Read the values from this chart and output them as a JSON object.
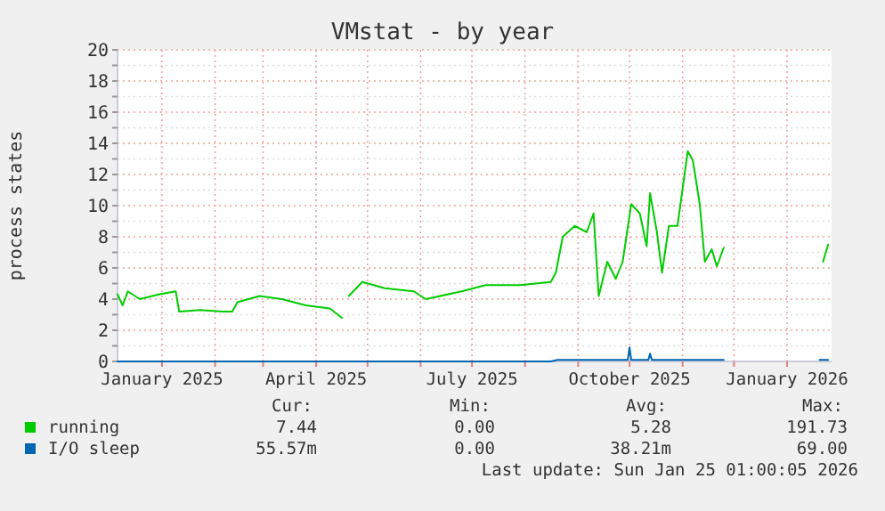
{
  "chart_data": {
    "type": "line",
    "title": "VMstat - by year",
    "ylabel": "process states",
    "xlim": [
      "2024-12-06",
      "2026-01-27"
    ],
    "xticks": [
      {
        "value": "2025-01-01",
        "label": "January 2025"
      },
      {
        "value": "2025-02-01",
        "label": null
      },
      {
        "value": "2025-03-01",
        "label": null
      },
      {
        "value": "2025-04-01",
        "label": "April 2025"
      },
      {
        "value": "2025-05-01",
        "label": null
      },
      {
        "value": "2025-06-01",
        "label": null
      },
      {
        "value": "2025-07-01",
        "label": "July 2025"
      },
      {
        "value": "2025-08-01",
        "label": null
      },
      {
        "value": "2025-09-01",
        "label": null
      },
      {
        "value": "2025-10-01",
        "label": "October 2025"
      },
      {
        "value": "2025-11-01",
        "label": null
      },
      {
        "value": "2025-12-01",
        "label": null
      },
      {
        "value": "2026-01-01",
        "label": "January 2026"
      }
    ],
    "ylim": [
      0,
      20
    ],
    "yticks": [
      0,
      {
        "value": 1,
        "label": null
      },
      2,
      {
        "value": 3,
        "label": null
      },
      4,
      {
        "value": 5,
        "label": null
      },
      6,
      {
        "value": 7,
        "label": null
      },
      8,
      {
        "value": 9,
        "label": null
      },
      10,
      {
        "value": 11,
        "label": null
      },
      12,
      {
        "value": 13,
        "label": null
      },
      14,
      {
        "value": 15,
        "label": null
      },
      16,
      {
        "value": 17,
        "label": null
      },
      18,
      {
        "value": 19,
        "label": null
      },
      20
    ],
    "grid": true,
    "legend": "bottom",
    "line_style": "solid",
    "marker": "none",
    "series": [
      {
        "name": "running",
        "color": "#00cc00",
        "x": [
          "2024-12-06",
          "2024-12-09",
          "2024-12-12",
          "2024-12-19",
          "2024-12-30",
          "2025-01-09",
          "2025-01-11",
          "2025-01-23",
          "2025-02-06",
          "2025-02-11",
          "2025-02-14",
          "2025-02-27",
          "2025-03-12",
          "2025-03-26",
          "2025-04-09",
          "2025-04-16"
        ],
        "values": [
          4.3,
          3.6,
          4.5,
          4.0,
          4.3,
          4.5,
          3.2,
          3.3,
          3.2,
          3.2,
          3.8,
          4.2,
          4.0,
          3.6,
          3.4,
          2.8
        ]
      },
      {
        "color": "#00cc00",
        "x": [
          "2025-04-20",
          "2025-04-28",
          "2025-05-11",
          "2025-05-28",
          "2025-06-04",
          "2025-06-25",
          "2025-07-09",
          "2025-07-29",
          "2025-08-16",
          "2025-08-19",
          "2025-08-23",
          "2025-08-30",
          "2025-09-06",
          "2025-09-10",
          "2025-09-13",
          "2025-09-18",
          "2025-09-23",
          "2025-09-27",
          "2025-10-02",
          "2025-10-07",
          "2025-10-11",
          "2025-10-13",
          "2025-10-17",
          "2025-10-20",
          "2025-10-24",
          "2025-10-29",
          "2025-11-04",
          "2025-11-07",
          "2025-11-11",
          "2025-11-14",
          "2025-11-18",
          "2025-11-21",
          "2025-11-25"
        ],
        "values": [
          4.2,
          5.1,
          4.7,
          4.5,
          4.0,
          4.5,
          4.9,
          4.9,
          5.1,
          5.7,
          8.0,
          8.7,
          8.3,
          9.5,
          4.2,
          6.4,
          5.3,
          6.4,
          10.1,
          9.5,
          7.4,
          10.8,
          8.3,
          5.7,
          8.7,
          8.7,
          13.5,
          12.9,
          10.1,
          6.4,
          7.2,
          6.1,
          7.3
        ]
      },
      {
        "color": "#00cc00",
        "x": [
          "2026-01-22",
          "2026-01-25"
        ],
        "values": [
          6.4,
          7.5
        ]
      },
      {
        "name": "I/O sleep",
        "color": "#0066b3",
        "x": [
          "2024-12-06",
          "2025-08-16",
          "2025-08-20",
          "2025-09-30",
          "2025-10-01",
          "2025-10-02",
          "2025-10-12",
          "2025-10-13",
          "2025-10-14",
          "2025-11-25"
        ],
        "values": [
          0,
          0,
          0.1,
          0.1,
          0.9,
          0.1,
          0.1,
          0.5,
          0.1,
          0.1
        ]
      },
      {
        "color": "#0066b3",
        "x": [
          "2026-01-20",
          "2026-01-25"
        ],
        "values": [
          0.1,
          0.1
        ]
      }
    ],
    "annotations": [
      "Cur:",
      "Min:",
      "Avg:",
      "Max:",
      "7.44",
      "0.00",
      "5.28",
      "191.73",
      "55.57m",
      "0.00",
      "38.21m",
      "69.00",
      "Last update: Sun Jan 25 01:00:05 2026"
    ]
  }
}
